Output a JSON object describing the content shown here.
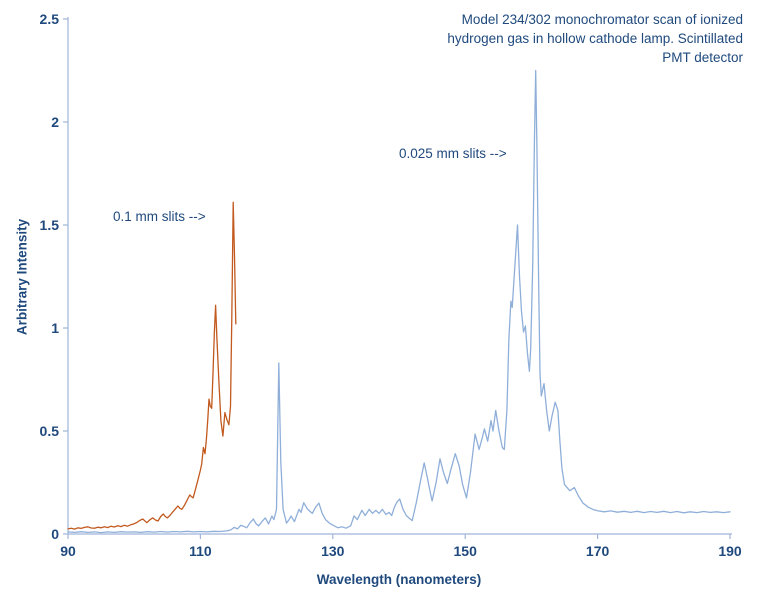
{
  "title": {
    "lines": [
      "Model 234/302 monochromator scan of ionized",
      "hydrogen gas in hollow cathode lamp. Scintillated",
      "PMT detector"
    ]
  },
  "annotations": [
    {
      "text": "0.1 mm slits -->",
      "points_to": "orange 0.1 mm slit scan peak near 115 nm"
    },
    {
      "text": "0.025 mm slits -->",
      "points_to": "blue 0.025 mm slit scan peak near 161 nm"
    }
  ],
  "colors": {
    "text": "#1F497D",
    "axis": "#9FB5D9",
    "series_01mm": "#C2591E",
    "series_0025mm": "#8FAFD9",
    "background": "#FFFFFF"
  },
  "chart_data": {
    "type": "line",
    "title": "Model 234/302 monochromator scan of ionized hydrogen gas in hollow cathode lamp. Scintillated PMT detector",
    "xlabel": "Wavelength (nanometers)",
    "ylabel": "Arbitrary Intensity",
    "xlim": [
      90,
      190
    ],
    "ylim": [
      0,
      2.5
    ],
    "x_ticks": [
      90,
      110,
      130,
      150,
      170,
      190
    ],
    "y_ticks": [
      0,
      0.5,
      1,
      1.5,
      2,
      2.5
    ],
    "grid": false,
    "legend_position": "none (inline text annotations)",
    "series": [
      {
        "name": "0.1 mm slits",
        "color": "#C2591E",
        "points": [
          [
            90,
            0.025
          ],
          [
            90.5,
            0.028
          ],
          [
            91,
            0.024
          ],
          [
            91.5,
            0.03
          ],
          [
            92,
            0.027
          ],
          [
            92.5,
            0.032
          ],
          [
            93,
            0.035
          ],
          [
            93.5,
            0.029
          ],
          [
            94,
            0.028
          ],
          [
            94.5,
            0.033
          ],
          [
            95,
            0.03
          ],
          [
            95.5,
            0.035
          ],
          [
            96,
            0.031
          ],
          [
            96.5,
            0.038
          ],
          [
            97,
            0.034
          ],
          [
            97.5,
            0.04
          ],
          [
            98,
            0.036
          ],
          [
            98.5,
            0.042
          ],
          [
            99,
            0.038
          ],
          [
            99.5,
            0.045
          ],
          [
            100,
            0.05
          ],
          [
            100.4,
            0.056
          ],
          [
            100.8,
            0.065
          ],
          [
            101.3,
            0.073
          ],
          [
            101.9,
            0.055
          ],
          [
            102.4,
            0.07
          ],
          [
            102.8,
            0.078
          ],
          [
            103.2,
            0.068
          ],
          [
            103.6,
            0.063
          ],
          [
            104,
            0.085
          ],
          [
            104.4,
            0.097
          ],
          [
            104.7,
            0.085
          ],
          [
            105,
            0.078
          ],
          [
            105.4,
            0.09
          ],
          [
            105.9,
            0.11
          ],
          [
            106.3,
            0.125
          ],
          [
            106.6,
            0.136
          ],
          [
            106.9,
            0.125
          ],
          [
            107.2,
            0.12
          ],
          [
            107.6,
            0.14
          ],
          [
            108,
            0.165
          ],
          [
            108.4,
            0.19
          ],
          [
            108.7,
            0.18
          ],
          [
            108.9,
            0.175
          ],
          [
            109.2,
            0.21
          ],
          [
            109.6,
            0.26
          ],
          [
            110,
            0.31
          ],
          [
            110.2,
            0.34
          ],
          [
            110.45,
            0.42
          ],
          [
            110.7,
            0.39
          ],
          [
            110.9,
            0.46
          ],
          [
            111.1,
            0.55
          ],
          [
            111.3,
            0.655
          ],
          [
            111.5,
            0.62
          ],
          [
            111.7,
            0.61
          ],
          [
            111.9,
            0.78
          ],
          [
            112.1,
            0.97
          ],
          [
            112.3,
            1.11
          ],
          [
            112.5,
            0.95
          ],
          [
            112.8,
            0.74
          ],
          [
            113.1,
            0.55
          ],
          [
            113.4,
            0.475
          ],
          [
            113.7,
            0.59
          ],
          [
            114,
            0.555
          ],
          [
            114.3,
            0.53
          ],
          [
            114.55,
            0.62
          ],
          [
            114.75,
            1.05
          ],
          [
            114.95,
            1.61
          ],
          [
            115.15,
            1.35
          ],
          [
            115.35,
            1.02
          ]
        ]
      },
      {
        "name": "0.025 mm slits",
        "color": "#8FAFD9",
        "points": [
          [
            90,
            0.01
          ],
          [
            91,
            0.008
          ],
          [
            92,
            0.011
          ],
          [
            93,
            0.008
          ],
          [
            94,
            0.01
          ],
          [
            95,
            0.007
          ],
          [
            96,
            0.01
          ],
          [
            97,
            0.008
          ],
          [
            98,
            0.011
          ],
          [
            99,
            0.009
          ],
          [
            100,
            0.01
          ],
          [
            101,
            0.008
          ],
          [
            102,
            0.011
          ],
          [
            103,
            0.009
          ],
          [
            104,
            0.012
          ],
          [
            105,
            0.009
          ],
          [
            106,
            0.012
          ],
          [
            107,
            0.01
          ],
          [
            108,
            0.013
          ],
          [
            109,
            0.01
          ],
          [
            110,
            0.012
          ],
          [
            111,
            0.01
          ],
          [
            112,
            0.013
          ],
          [
            113,
            0.012
          ],
          [
            114,
            0.015
          ],
          [
            114.6,
            0.02
          ],
          [
            115.1,
            0.032
          ],
          [
            115.6,
            0.025
          ],
          [
            116.1,
            0.042
          ],
          [
            116.5,
            0.038
          ],
          [
            117,
            0.03
          ],
          [
            117.5,
            0.055
          ],
          [
            118,
            0.073
          ],
          [
            118.4,
            0.05
          ],
          [
            118.8,
            0.04
          ],
          [
            119.3,
            0.06
          ],
          [
            119.8,
            0.078
          ],
          [
            120.3,
            0.049
          ],
          [
            120.8,
            0.087
          ],
          [
            121.1,
            0.07
          ],
          [
            121.5,
            0.12
          ],
          [
            121.85,
            0.83
          ],
          [
            122.15,
            0.35
          ],
          [
            122.5,
            0.12
          ],
          [
            123,
            0.053
          ],
          [
            123.4,
            0.07
          ],
          [
            123.7,
            0.087
          ],
          [
            124.2,
            0.06
          ],
          [
            124.9,
            0.12
          ],
          [
            125.2,
            0.105
          ],
          [
            125.6,
            0.152
          ],
          [
            126.2,
            0.12
          ],
          [
            126.9,
            0.1
          ],
          [
            127.4,
            0.13
          ],
          [
            127.9,
            0.15
          ],
          [
            128.4,
            0.1
          ],
          [
            128.9,
            0.07
          ],
          [
            129.6,
            0.05
          ],
          [
            130.2,
            0.04
          ],
          [
            130.8,
            0.03
          ],
          [
            131.4,
            0.035
          ],
          [
            132,
            0.028
          ],
          [
            132.7,
            0.04
          ],
          [
            133.2,
            0.088
          ],
          [
            133.7,
            0.07
          ],
          [
            134.4,
            0.115
          ],
          [
            134.9,
            0.09
          ],
          [
            135.5,
            0.12
          ],
          [
            136,
            0.1
          ],
          [
            136.5,
            0.115
          ],
          [
            137,
            0.1
          ],
          [
            137.5,
            0.12
          ],
          [
            138,
            0.095
          ],
          [
            138.5,
            0.105
          ],
          [
            138.9,
            0.09
          ],
          [
            139.3,
            0.13
          ],
          [
            139.7,
            0.155
          ],
          [
            140.1,
            0.17
          ],
          [
            140.6,
            0.12
          ],
          [
            141.1,
            0.09
          ],
          [
            141.6,
            0.075
          ],
          [
            142,
            0.065
          ],
          [
            142.6,
            0.15
          ],
          [
            143.2,
            0.25
          ],
          [
            143.8,
            0.345
          ],
          [
            144.3,
            0.27
          ],
          [
            144.6,
            0.22
          ],
          [
            145,
            0.16
          ],
          [
            145.6,
            0.25
          ],
          [
            146.2,
            0.365
          ],
          [
            146.7,
            0.3
          ],
          [
            147.3,
            0.245
          ],
          [
            147.9,
            0.32
          ],
          [
            148.5,
            0.39
          ],
          [
            149.1,
            0.33
          ],
          [
            149.6,
            0.24
          ],
          [
            150.2,
            0.175
          ],
          [
            150.8,
            0.3
          ],
          [
            151.5,
            0.485
          ],
          [
            152.1,
            0.41
          ],
          [
            152.6,
            0.47
          ],
          [
            152.9,
            0.51
          ],
          [
            153.4,
            0.45
          ],
          [
            153.9,
            0.55
          ],
          [
            154.2,
            0.5
          ],
          [
            154.6,
            0.6
          ],
          [
            155.1,
            0.5
          ],
          [
            155.6,
            0.42
          ],
          [
            155.9,
            0.41
          ],
          [
            156.3,
            0.6
          ],
          [
            156.6,
            0.95
          ],
          [
            156.9,
            1.13
          ],
          [
            157.1,
            1.1
          ],
          [
            157.4,
            1.25
          ],
          [
            157.9,
            1.5
          ],
          [
            158.2,
            1.25
          ],
          [
            158.5,
            1.08
          ],
          [
            158.8,
            0.98
          ],
          [
            159.1,
            1.01
          ],
          [
            159.4,
            0.88
          ],
          [
            159.7,
            0.79
          ],
          [
            159.9,
            0.9
          ],
          [
            160.2,
            1.3
          ],
          [
            160.45,
            1.9
          ],
          [
            160.65,
            2.25
          ],
          [
            160.85,
            1.85
          ],
          [
            161.1,
            1.2
          ],
          [
            161.3,
            0.78
          ],
          [
            161.5,
            0.67
          ],
          [
            161.9,
            0.73
          ],
          [
            162.3,
            0.6
          ],
          [
            162.7,
            0.5
          ],
          [
            163.1,
            0.57
          ],
          [
            163.6,
            0.64
          ],
          [
            164,
            0.6
          ],
          [
            164.3,
            0.45
          ],
          [
            164.6,
            0.32
          ],
          [
            165,
            0.24
          ],
          [
            165.4,
            0.225
          ],
          [
            165.8,
            0.21
          ],
          [
            166.5,
            0.225
          ],
          [
            167.1,
            0.185
          ],
          [
            167.8,
            0.15
          ],
          [
            168.6,
            0.13
          ],
          [
            169.4,
            0.118
          ],
          [
            170.1,
            0.112
          ],
          [
            171,
            0.108
          ],
          [
            172,
            0.112
          ],
          [
            173,
            0.106
          ],
          [
            174,
            0.11
          ],
          [
            175,
            0.105
          ],
          [
            176,
            0.11
          ],
          [
            177,
            0.104
          ],
          [
            178,
            0.109
          ],
          [
            179,
            0.105
          ],
          [
            180,
            0.11
          ],
          [
            181,
            0.104
          ],
          [
            182,
            0.109
          ],
          [
            183,
            0.103
          ],
          [
            184,
            0.108
          ],
          [
            185,
            0.104
          ],
          [
            186,
            0.109
          ],
          [
            187,
            0.105
          ],
          [
            188,
            0.108
          ],
          [
            189,
            0.104
          ],
          [
            190,
            0.108
          ]
        ]
      }
    ]
  }
}
